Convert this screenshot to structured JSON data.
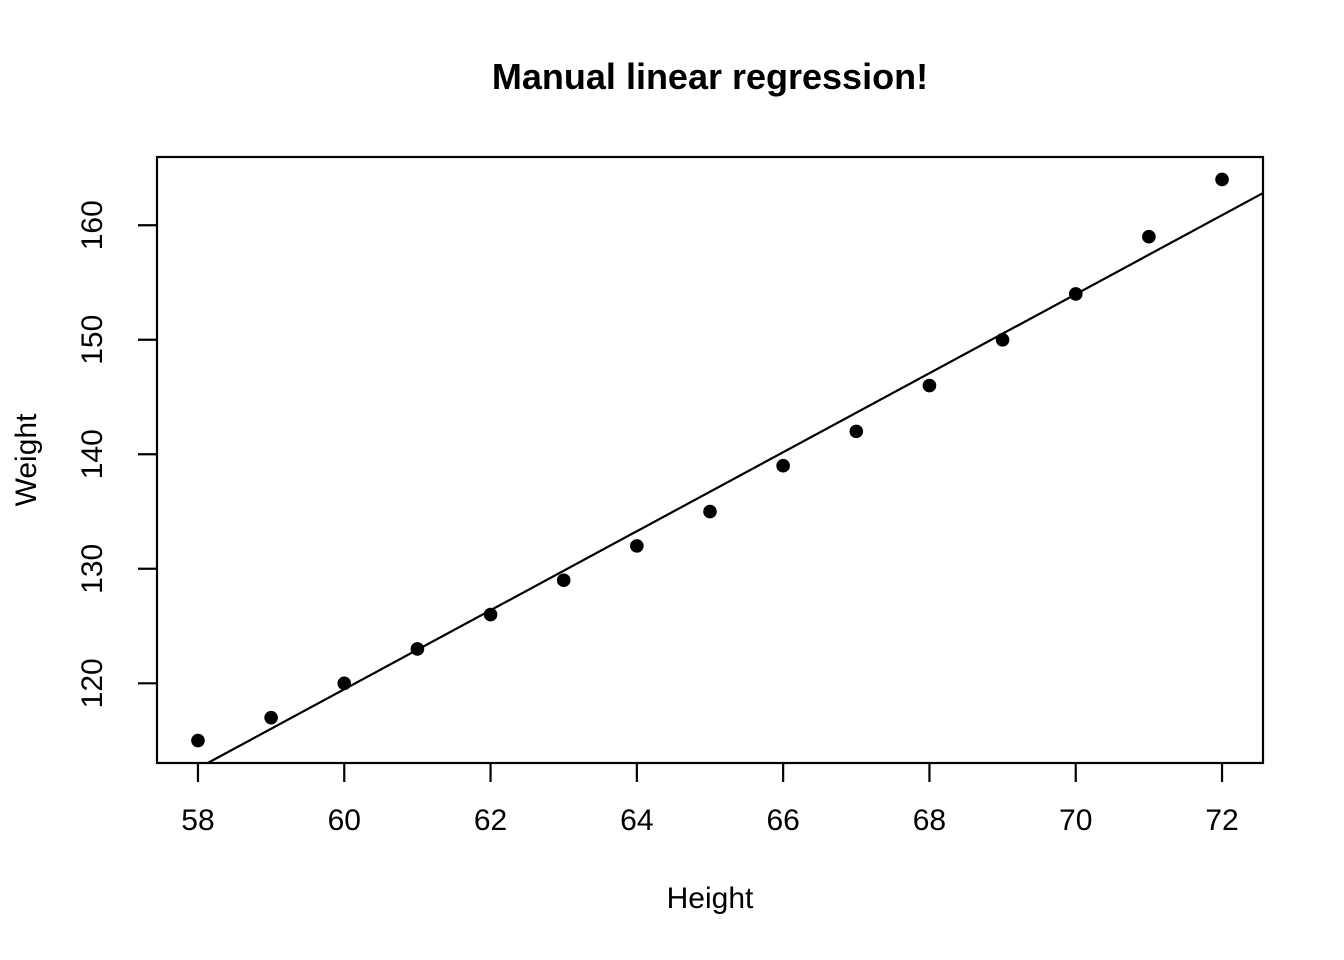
{
  "chart_data": {
    "type": "scatter",
    "title": "Manual linear regression!",
    "xlabel": "Height",
    "ylabel": "Weight",
    "x": [
      58,
      59,
      60,
      61,
      62,
      63,
      64,
      65,
      66,
      67,
      68,
      69,
      70,
      71,
      72
    ],
    "y": [
      115,
      117,
      120,
      123,
      126,
      129,
      132,
      135,
      139,
      142,
      146,
      150,
      154,
      159,
      164
    ],
    "x_ticks": [
      58,
      60,
      62,
      64,
      66,
      68,
      70,
      72
    ],
    "y_ticks": [
      120,
      130,
      140,
      150,
      160
    ],
    "xlim": [
      57.44,
      72.56
    ],
    "ylim": [
      113.04,
      165.96
    ],
    "regression_line": {
      "slope": 3.45,
      "intercept": -87.52
    },
    "grid": false,
    "legend": "none",
    "point_color": "#000000",
    "line_color": "#000000",
    "axis_color": "#000000",
    "background_color": "#ffffff"
  }
}
